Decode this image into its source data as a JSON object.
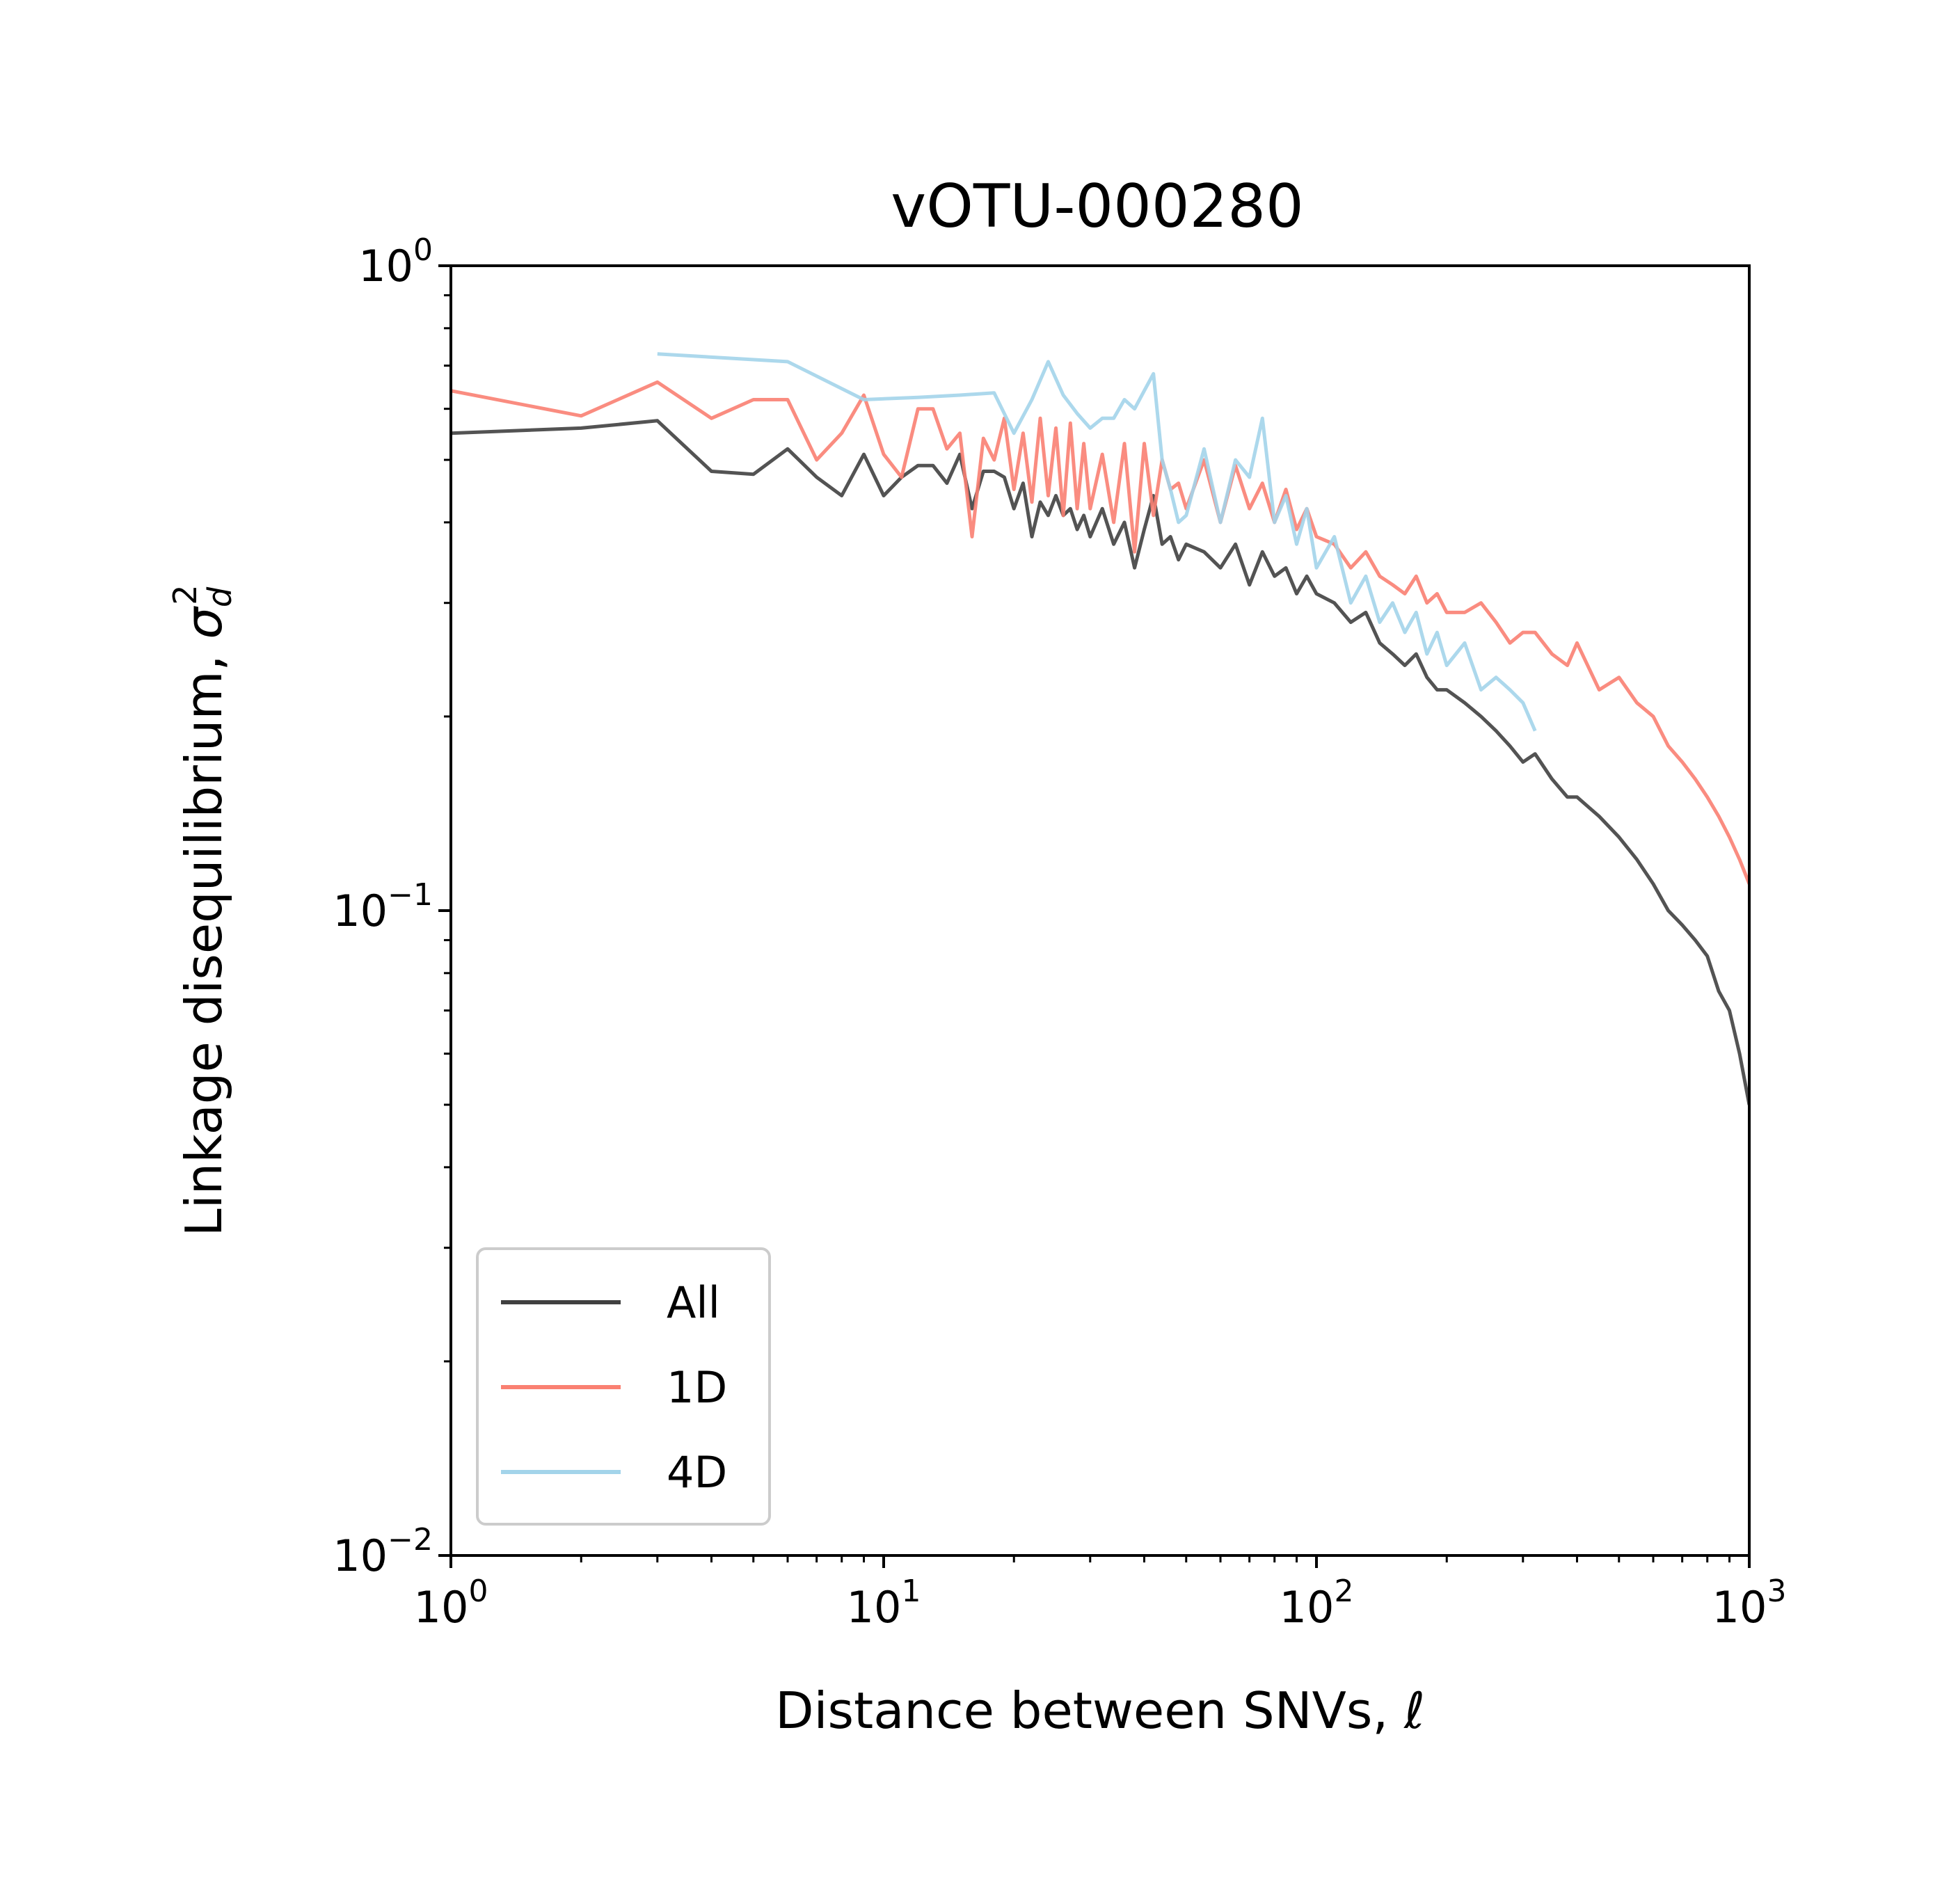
{
  "chart_data": {
    "type": "line",
    "title": "vOTU-000280",
    "xlabel": "Distance between SNVs, ℓ",
    "ylabel_text": "Linkage disequilibrium, ",
    "ylabel_symbol": "σ",
    "ylabel_sub": "d",
    "ylabel_sup": "2",
    "xscale": "log",
    "yscale": "log",
    "xlim": [
      1,
      1000
    ],
    "ylim": [
      0.01,
      1
    ],
    "x_ticks": [
      {
        "base": "10",
        "exp": "0"
      },
      {
        "base": "10",
        "exp": "1"
      },
      {
        "base": "10",
        "exp": "2"
      },
      {
        "base": "10",
        "exp": "3"
      }
    ],
    "y_ticks": [
      {
        "base": "10",
        "exp": "0"
      },
      {
        "base": "10",
        "exp": "−1"
      },
      {
        "base": "10",
        "exp": "−2"
      }
    ],
    "legend_position": "lower-left",
    "series": [
      {
        "name": "All",
        "color": "#404040",
        "x": [
          1,
          2,
          3,
          4,
          5,
          6,
          7,
          8,
          9,
          10,
          11,
          12,
          13,
          14,
          15,
          16,
          17,
          18,
          19,
          20,
          21,
          22,
          23,
          24,
          25,
          26,
          27,
          28,
          29,
          30,
          32,
          34,
          36,
          38,
          40,
          42,
          44,
          46,
          48,
          50,
          55,
          60,
          65,
          70,
          75,
          80,
          85,
          90,
          95,
          100,
          110,
          120,
          130,
          140,
          150,
          160,
          170,
          180,
          190,
          200,
          220,
          240,
          260,
          280,
          300,
          320,
          350,
          380,
          400,
          450,
          500,
          550,
          600,
          650,
          700,
          750,
          800,
          850,
          900,
          950,
          1000
        ],
        "values": [
          0.55,
          0.56,
          0.575,
          0.48,
          0.475,
          0.52,
          0.47,
          0.44,
          0.51,
          0.44,
          0.47,
          0.49,
          0.49,
          0.46,
          0.51,
          0.42,
          0.48,
          0.48,
          0.47,
          0.42,
          0.46,
          0.38,
          0.43,
          0.41,
          0.44,
          0.41,
          0.42,
          0.39,
          0.41,
          0.38,
          0.42,
          0.37,
          0.4,
          0.34,
          0.39,
          0.44,
          0.37,
          0.38,
          0.35,
          0.37,
          0.36,
          0.34,
          0.37,
          0.32,
          0.36,
          0.33,
          0.34,
          0.31,
          0.33,
          0.31,
          0.3,
          0.28,
          0.29,
          0.26,
          0.25,
          0.24,
          0.25,
          0.23,
          0.22,
          0.22,
          0.21,
          0.2,
          0.19,
          0.18,
          0.17,
          0.175,
          0.16,
          0.15,
          0.15,
          0.14,
          0.13,
          0.12,
          0.11,
          0.1,
          0.095,
          0.09,
          0.085,
          0.075,
          0.07,
          0.06,
          0.05
        ]
      },
      {
        "name": "1D",
        "color": "#fa8072",
        "x": [
          1,
          2,
          3,
          4,
          5,
          6,
          7,
          8,
          9,
          10,
          11,
          12,
          13,
          14,
          15,
          16,
          17,
          18,
          19,
          20,
          21,
          22,
          23,
          24,
          25,
          26,
          27,
          28,
          29,
          30,
          32,
          34,
          36,
          38,
          40,
          42,
          44,
          46,
          48,
          50,
          55,
          60,
          65,
          70,
          75,
          80,
          85,
          90,
          95,
          100,
          110,
          120,
          130,
          140,
          150,
          160,
          170,
          180,
          190,
          200,
          220,
          240,
          260,
          280,
          300,
          320,
          350,
          380,
          400,
          450,
          500,
          550,
          600,
          650,
          700,
          750,
          800,
          850,
          900,
          950,
          1000
        ],
        "values": [
          0.64,
          0.585,
          0.66,
          0.58,
          0.62,
          0.62,
          0.5,
          0.55,
          0.63,
          0.51,
          0.47,
          0.6,
          0.6,
          0.52,
          0.55,
          0.38,
          0.54,
          0.5,
          0.58,
          0.45,
          0.55,
          0.43,
          0.58,
          0.44,
          0.56,
          0.41,
          0.57,
          0.42,
          0.53,
          0.42,
          0.51,
          0.4,
          0.53,
          0.36,
          0.53,
          0.41,
          0.5,
          0.45,
          0.46,
          0.42,
          0.5,
          0.4,
          0.49,
          0.42,
          0.46,
          0.4,
          0.45,
          0.39,
          0.42,
          0.38,
          0.37,
          0.34,
          0.36,
          0.33,
          0.32,
          0.31,
          0.33,
          0.3,
          0.31,
          0.29,
          0.29,
          0.3,
          0.28,
          0.26,
          0.27,
          0.27,
          0.25,
          0.24,
          0.26,
          0.22,
          0.23,
          0.21,
          0.2,
          0.18,
          0.17,
          0.16,
          0.15,
          0.14,
          0.13,
          0.12,
          0.11
        ]
      },
      {
        "name": "4D",
        "color": "#a3d4ea",
        "x": [
          3,
          6,
          9,
          12,
          15,
          18,
          20,
          22,
          24,
          26,
          28,
          30,
          32,
          34,
          36,
          38,
          40,
          42,
          44,
          46,
          48,
          50,
          55,
          60,
          65,
          70,
          75,
          80,
          85,
          90,
          95,
          100,
          110,
          120,
          130,
          140,
          150,
          160,
          170,
          180,
          190,
          200,
          220,
          240,
          260,
          280,
          300,
          320
        ],
        "values": [
          0.73,
          0.71,
          0.62,
          0.625,
          0.63,
          0.635,
          0.55,
          0.62,
          0.71,
          0.63,
          0.59,
          0.56,
          0.58,
          0.58,
          0.62,
          0.6,
          0.64,
          0.68,
          0.5,
          0.45,
          0.4,
          0.41,
          0.52,
          0.4,
          0.5,
          0.47,
          0.58,
          0.4,
          0.44,
          0.37,
          0.42,
          0.34,
          0.38,
          0.3,
          0.33,
          0.28,
          0.3,
          0.27,
          0.29,
          0.25,
          0.27,
          0.24,
          0.26,
          0.22,
          0.23,
          0.22,
          0.21,
          0.19
        ]
      }
    ]
  }
}
